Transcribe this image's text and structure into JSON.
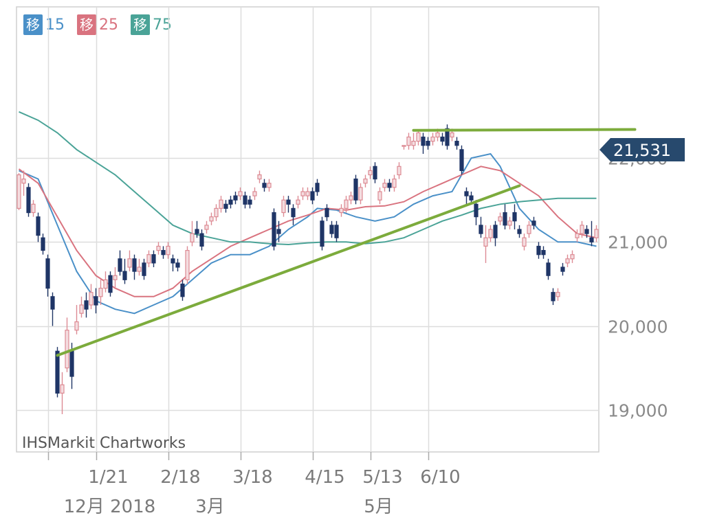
{
  "legend": [
    {
      "glyph": "移",
      "period": "15",
      "color": "#4a90c8"
    },
    {
      "glyph": "移",
      "period": "25",
      "color": "#d9737f"
    },
    {
      "glyph": "移",
      "period": "75",
      "color": "#4aa397"
    }
  ],
  "current_price_label": "21,531",
  "watermark": "IHSMarkit Chartworks",
  "chart_data": {
    "type": "candlestick",
    "ylim": [
      18500,
      23800
    ],
    "y_ticks": [
      {
        "value": 19000,
        "label": "19,000"
      },
      {
        "value": 20000,
        "label": "20,000"
      },
      {
        "value": 21000,
        "label": "21,000"
      },
      {
        "value": 22000,
        "label": "22,000"
      }
    ],
    "x_tick_labels_upper": [
      "1/21",
      "2/18",
      "3/18",
      "4/15",
      "5/13",
      "6/10"
    ],
    "x_tick_labels_lower": [
      "12月 2018",
      "3月",
      "5月"
    ],
    "current_price": 21531,
    "colors": {
      "up": "#dd8a93",
      "down": "#1f3566",
      "ma15": "#4a90c8",
      "ma25": "#d9737f",
      "ma75": "#4aa397",
      "trend": "#7cab3c",
      "marker": "#27496d"
    },
    "series": [
      {
        "name": "15",
        "values": [
          [
            0,
            21850
          ],
          [
            4,
            21750
          ],
          [
            8,
            21200
          ],
          [
            12,
            20650
          ],
          [
            16,
            20300
          ],
          [
            20,
            20200
          ],
          [
            24,
            20150
          ],
          [
            28,
            20250
          ],
          [
            32,
            20350
          ],
          [
            36,
            20550
          ],
          [
            40,
            20750
          ],
          [
            44,
            20850
          ],
          [
            48,
            20850
          ],
          [
            52,
            20950
          ],
          [
            56,
            21150
          ],
          [
            60,
            21300
          ],
          [
            62,
            21400
          ],
          [
            66,
            21380
          ],
          [
            70,
            21300
          ],
          [
            74,
            21250
          ],
          [
            78,
            21300
          ],
          [
            82,
            21450
          ],
          [
            86,
            21550
          ],
          [
            90,
            21600
          ],
          [
            94,
            22000
          ],
          [
            98,
            22050
          ],
          [
            100,
            21900
          ],
          [
            104,
            21400
          ],
          [
            108,
            21150
          ],
          [
            112,
            21000
          ],
          [
            116,
            21000
          ],
          [
            120,
            20950
          ]
        ]
      },
      {
        "name": "25",
        "values": [
          [
            0,
            21870
          ],
          [
            4,
            21700
          ],
          [
            8,
            21300
          ],
          [
            12,
            20900
          ],
          [
            16,
            20600
          ],
          [
            20,
            20450
          ],
          [
            24,
            20350
          ],
          [
            28,
            20350
          ],
          [
            32,
            20450
          ],
          [
            36,
            20650
          ],
          [
            40,
            20800
          ],
          [
            44,
            20950
          ],
          [
            48,
            21050
          ],
          [
            52,
            21150
          ],
          [
            56,
            21250
          ],
          [
            60,
            21320
          ],
          [
            64,
            21400
          ],
          [
            68,
            21380
          ],
          [
            72,
            21420
          ],
          [
            76,
            21430
          ],
          [
            80,
            21480
          ],
          [
            84,
            21600
          ],
          [
            88,
            21700
          ],
          [
            92,
            21800
          ],
          [
            96,
            21900
          ],
          [
            100,
            21850
          ],
          [
            104,
            21700
          ],
          [
            108,
            21550
          ],
          [
            112,
            21300
          ],
          [
            116,
            21100
          ],
          [
            120,
            21050
          ]
        ]
      },
      {
        "name": "75",
        "values": [
          [
            0,
            22550
          ],
          [
            4,
            22450
          ],
          [
            8,
            22300
          ],
          [
            12,
            22100
          ],
          [
            16,
            21950
          ],
          [
            20,
            21800
          ],
          [
            24,
            21600
          ],
          [
            28,
            21400
          ],
          [
            32,
            21200
          ],
          [
            36,
            21100
          ],
          [
            40,
            21050
          ],
          [
            44,
            21000
          ],
          [
            48,
            21000
          ],
          [
            52,
            20980
          ],
          [
            56,
            20970
          ],
          [
            60,
            20990
          ],
          [
            64,
            21000
          ],
          [
            68,
            21000
          ],
          [
            72,
            20980
          ],
          [
            76,
            21000
          ],
          [
            80,
            21050
          ],
          [
            84,
            21150
          ],
          [
            88,
            21250
          ],
          [
            92,
            21320
          ],
          [
            96,
            21400
          ],
          [
            100,
            21450
          ],
          [
            104,
            21480
          ],
          [
            108,
            21500
          ],
          [
            112,
            21520
          ],
          [
            116,
            21520
          ],
          [
            120,
            21520
          ]
        ]
      }
    ],
    "trend_lines": [
      {
        "from": [
          8,
          19650
        ],
        "to": [
          104,
          21670
        ]
      },
      {
        "from": [
          82,
          22330
        ],
        "to": [
          128,
          22340
        ]
      }
    ],
    "candles": [
      [
        0,
        21400,
        21800,
        21380,
        21820
      ],
      [
        1,
        21700,
        21750,
        21550,
        21850
      ],
      [
        2,
        21650,
        21350,
        21300,
        21700
      ],
      [
        3,
        21350,
        21450,
        21300,
        21500
      ],
      [
        4,
        21300,
        21080,
        21000,
        21350
      ],
      [
        5,
        21050,
        20900,
        20850,
        21100
      ],
      [
        6,
        20800,
        20450,
        20350,
        20850
      ],
      [
        7,
        20350,
        20200,
        20000,
        20400
      ],
      [
        8,
        19700,
        19200,
        19150,
        19750
      ],
      [
        9,
        19200,
        19300,
        18950,
        19450
      ],
      [
        10,
        19500,
        19950,
        19450,
        20100
      ],
      [
        11,
        19700,
        19400,
        19250,
        19800
      ],
      [
        12,
        19950,
        20050,
        19900,
        20250
      ],
      [
        13,
        20150,
        20250,
        20100,
        20350
      ],
      [
        14,
        20300,
        20200,
        20100,
        20400
      ],
      [
        15,
        20250,
        20400,
        20200,
        20500
      ],
      [
        16,
        20350,
        20250,
        20150,
        20450
      ],
      [
        17,
        20350,
        20450,
        20250,
        20550
      ],
      [
        18,
        20450,
        20550,
        20400,
        20650
      ],
      [
        19,
        20600,
        20400,
        20350,
        20650
      ],
      [
        20,
        20550,
        20600,
        20450,
        20700
      ],
      [
        21,
        20800,
        20650,
        20600,
        20900
      ],
      [
        22,
        20650,
        20550,
        20500,
        20800
      ],
      [
        23,
        20700,
        20800,
        20650,
        20900
      ],
      [
        24,
        20800,
        20650,
        20550,
        20850
      ],
      [
        25,
        20650,
        20700,
        20600,
        20800
      ],
      [
        26,
        20750,
        20600,
        20550,
        20800
      ],
      [
        27,
        20750,
        20850,
        20700,
        20900
      ],
      [
        28,
        20850,
        20750,
        20700,
        20900
      ],
      [
        29,
        20900,
        20950,
        20850,
        21000
      ],
      [
        30,
        20900,
        20850,
        20800,
        20950
      ],
      [
        31,
        20850,
        20950,
        20800,
        21000
      ],
      [
        32,
        20800,
        20750,
        20650,
        20850
      ],
      [
        33,
        20750,
        20700,
        20650,
        20800
      ],
      [
        34,
        20500,
        20350,
        20300,
        20550
      ],
      [
        35,
        20550,
        20900,
        20500,
        20950
      ],
      [
        36,
        21000,
        21100,
        20950,
        21250
      ],
      [
        37,
        21150,
        21100,
        21050,
        21250
      ],
      [
        38,
        21100,
        20950,
        20900,
        21150
      ],
      [
        39,
        21150,
        21200,
        21100,
        21250
      ],
      [
        40,
        21250,
        21300,
        21200,
        21350
      ],
      [
        41,
        21300,
        21400,
        21250,
        21450
      ],
      [
        42,
        21400,
        21500,
        21350,
        21550
      ],
      [
        43,
        21450,
        21400,
        21350,
        21500
      ],
      [
        44,
        21500,
        21450,
        21400,
        21550
      ],
      [
        45,
        21550,
        21500,
        21450,
        21600
      ],
      [
        46,
        21550,
        21600,
        21500,
        21650
      ],
      [
        47,
        21550,
        21450,
        21400,
        21600
      ],
      [
        48,
        21500,
        21450,
        21400,
        21550
      ],
      [
        49,
        21550,
        21600,
        21500,
        21650
      ],
      [
        50,
        21750,
        21800,
        21700,
        21850
      ],
      [
        51,
        21700,
        21650,
        21600,
        21750
      ],
      [
        52,
        21650,
        21700,
        21600,
        21750
      ],
      [
        53,
        21350,
        20950,
        20900,
        21400
      ],
      [
        54,
        21150,
        21100,
        21000,
        21250
      ],
      [
        55,
        21350,
        21500,
        21300,
        21550
      ],
      [
        56,
        21500,
        21450,
        21350,
        21550
      ],
      [
        57,
        21400,
        21300,
        21200,
        21450
      ],
      [
        58,
        21450,
        21500,
        21400,
        21550
      ],
      [
        59,
        21550,
        21600,
        21500,
        21650
      ],
      [
        60,
        21550,
        21600,
        21500,
        21650
      ],
      [
        61,
        21600,
        21500,
        21450,
        21650
      ],
      [
        62,
        21700,
        21600,
        21550,
        21750
      ],
      [
        63,
        21250,
        20950,
        20900,
        21300
      ],
      [
        64,
        21400,
        21300,
        21250,
        21450
      ],
      [
        65,
        21200,
        21100,
        21050,
        21250
      ],
      [
        66,
        21200,
        21050,
        21000,
        21250
      ],
      [
        67,
        21350,
        21400,
        21300,
        21450
      ],
      [
        68,
        21400,
        21500,
        21350,
        21550
      ],
      [
        69,
        21500,
        21550,
        21450,
        21600
      ],
      [
        70,
        21750,
        21500,
        21450,
        21800
      ],
      [
        71,
        21500,
        21650,
        21450,
        21700
      ],
      [
        72,
        21700,
        21750,
        21650,
        21800
      ],
      [
        73,
        21800,
        21850,
        21750,
        21900
      ],
      [
        74,
        21900,
        21750,
        21700,
        21950
      ],
      [
        75,
        21500,
        21600,
        21450,
        21650
      ],
      [
        76,
        21650,
        21700,
        21600,
        21750
      ],
      [
        77,
        21700,
        21650,
        21600,
        21750
      ],
      [
        78,
        21650,
        21750,
        21600,
        21800
      ],
      [
        79,
        21800,
        21900,
        21750,
        21950
      ],
      [
        80,
        22150,
        22150,
        22100,
        22150
      ],
      [
        81,
        22150,
        22250,
        22100,
        22300
      ],
      [
        82,
        22150,
        22200,
        22100,
        22300
      ],
      [
        83,
        22200,
        22300,
        22150,
        22330
      ],
      [
        84,
        22250,
        22150,
        22050,
        22300
      ],
      [
        85,
        22200,
        22150,
        22100,
        22250
      ],
      [
        86,
        22200,
        22250,
        22150,
        22300
      ],
      [
        87,
        22250,
        22300,
        22200,
        22350
      ],
      [
        88,
        22250,
        22200,
        22150,
        22300
      ],
      [
        89,
        22350,
        22150,
        22100,
        22400
      ],
      [
        90,
        22250,
        22300,
        22200,
        22350
      ],
      [
        91,
        22200,
        22150,
        22100,
        22250
      ],
      [
        92,
        22100,
        21850,
        21800,
        22150
      ],
      [
        93,
        21600,
        21550,
        21450,
        21650
      ],
      [
        94,
        21550,
        21500,
        21450,
        21600
      ],
      [
        95,
        21450,
        21300,
        21200,
        21500
      ],
      [
        96,
        21200,
        21100,
        21050,
        21300
      ],
      [
        97,
        20950,
        21050,
        20750,
        21200
      ],
      [
        98,
        21050,
        21150,
        21000,
        21200
      ],
      [
        99,
        21200,
        21050,
        20950,
        21250
      ],
      [
        100,
        21250,
        21300,
        21200,
        21350
      ],
      [
        101,
        21350,
        21200,
        21150,
        21450
      ],
      [
        102,
        21200,
        21250,
        21150,
        21300
      ],
      [
        103,
        21350,
        21250,
        21150,
        21450
      ],
      [
        104,
        21150,
        21100,
        21050,
        21200
      ],
      [
        105,
        20950,
        21050,
        20900,
        21100
      ],
      [
        106,
        21100,
        21200,
        21050,
        21250
      ],
      [
        107,
        21250,
        21200,
        21150,
        21300
      ],
      [
        108,
        20950,
        20850,
        20800,
        21000
      ],
      [
        109,
        20900,
        20850,
        20800,
        20950
      ],
      [
        110,
        20750,
        20600,
        20550,
        20800
      ],
      [
        111,
        20400,
        20300,
        20250,
        20450
      ],
      [
        112,
        20350,
        20400,
        20300,
        20450
      ],
      [
        113,
        20700,
        20650,
        20600,
        20750
      ],
      [
        114,
        20750,
        20800,
        20700,
        20850
      ],
      [
        115,
        20800,
        20850,
        20750,
        20900
      ],
      [
        116,
        21050,
        21100,
        21000,
        21150
      ],
      [
        117,
        21100,
        21200,
        21050,
        21250
      ],
      [
        118,
        21150,
        21100,
        21050,
        21200
      ],
      [
        119,
        21050,
        21000,
        20950,
        21250
      ],
      [
        120,
        21050,
        21150,
        21000,
        21200
      ]
    ]
  }
}
